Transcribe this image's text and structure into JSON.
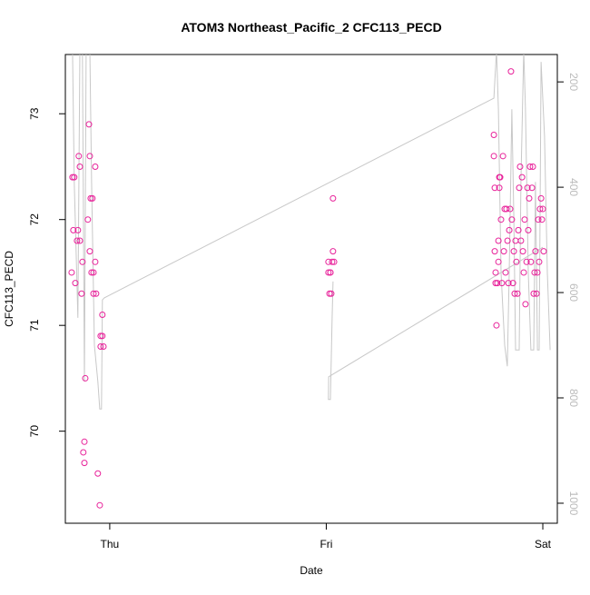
{
  "chart_data": {
    "type": "scatter",
    "title": "ATOM3 Northeast_Pacific_2 CFC113_PECD",
    "xlabel": "Date",
    "ylabel": "CFC113_PECD",
    "xlim": [
      -0.205,
      2.067
    ],
    "xticks": [
      {
        "value": 0,
        "label": "Thu"
      },
      {
        "value": 1,
        "label": "Fri"
      },
      {
        "value": 2,
        "label": "Sat"
      }
    ],
    "ylim": [
      69.13,
      73.56
    ],
    "yticks": [
      70,
      71,
      72,
      73
    ],
    "y2lim": [
      1038,
      148
    ],
    "y2ticks": [
      200,
      400,
      600,
      800,
      1000
    ],
    "series": [
      {
        "color": "#e8229a",
        "type": "scatter",
        "x": [
          -0.176,
          -0.172,
          -0.164,
          -0.168,
          -0.159,
          -0.151,
          -0.143,
          -0.147,
          -0.138,
          -0.138,
          -0.13,
          -0.126,
          -0.117,
          -0.122,
          -0.117,
          -0.113,
          -0.101,
          -0.096,
          -0.092,
          -0.088,
          -0.08,
          -0.092,
          -0.084,
          -0.075,
          -0.075,
          -0.067,
          -0.067,
          -0.063,
          -0.055,
          -0.046,
          -0.042,
          -0.034,
          -0.042,
          -0.029,
          -0.034,
          1.01,
          1.015,
          1.023,
          1.019,
          1.027,
          1.031,
          1.036,
          1.031,
          1.01,
          1.019,
          1.774,
          1.774,
          1.778,
          1.778,
          1.782,
          1.782,
          1.786,
          1.79,
          1.795,
          1.795,
          1.799,
          1.799,
          1.803,
          1.807,
          1.811,
          1.816,
          1.82,
          1.824,
          1.828,
          1.832,
          1.837,
          1.841,
          1.845,
          1.849,
          1.853,
          1.857,
          1.862,
          1.866,
          1.87,
          1.874,
          1.878,
          1.883,
          1.887,
          1.891,
          1.895,
          1.899,
          1.904,
          1.908,
          1.912,
          1.916,
          1.92,
          1.925,
          1.929,
          1.933,
          1.937,
          1.941,
          1.945,
          1.95,
          1.954,
          1.958,
          1.962,
          1.966,
          1.971,
          1.975,
          1.979,
          1.983,
          1.987,
          1.992,
          1.996,
          2.0,
          2.004
        ],
        "values": [
          71.5,
          72.4,
          72.4,
          71.9,
          71.4,
          71.8,
          72.6,
          71.9,
          72.5,
          71.8,
          71.3,
          71.6,
          69.9,
          69.8,
          69.7,
          70.5,
          72.0,
          72.9,
          72.6,
          72.2,
          72.2,
          71.7,
          71.5,
          71.5,
          71.3,
          72.5,
          71.6,
          71.3,
          69.6,
          69.3,
          70.9,
          70.9,
          70.8,
          70.8,
          71.1,
          71.5,
          71.3,
          71.3,
          71.5,
          71.6,
          71.7,
          71.6,
          72.2,
          71.6,
          71.5,
          72.8,
          72.6,
          72.3,
          71.7,
          71.5,
          71.4,
          71.0,
          71.4,
          71.8,
          71.6,
          72.3,
          72.4,
          72.4,
          72.0,
          71.4,
          72.6,
          71.7,
          72.1,
          71.5,
          72.1,
          71.8,
          71.4,
          71.9,
          72.1,
          73.4,
          72.0,
          71.4,
          71.7,
          71.3,
          71.8,
          71.6,
          71.3,
          71.9,
          72.3,
          72.5,
          71.8,
          72.4,
          71.7,
          71.5,
          72.0,
          71.2,
          71.6,
          72.3,
          71.9,
          72.2,
          72.5,
          71.6,
          72.3,
          72.5,
          71.3,
          71.5,
          71.7,
          71.3,
          71.5,
          72.0,
          71.6,
          72.1,
          72.2,
          72.0,
          72.1,
          71.7
        ]
      },
      {
        "color": "#c8c8c8",
        "type": "line",
        "axis": "y2",
        "x": [
          -0.172,
          -0.164,
          -0.147,
          -0.138,
          -0.126,
          -0.117,
          -0.109,
          -0.092,
          -0.084,
          -0.071,
          -0.055,
          -0.046,
          -0.038,
          -0.034,
          -0.025,
          1.774,
          1.786,
          1.795,
          1.807,
          1.824,
          1.836,
          1.845,
          1.857,
          1.866,
          1.874,
          1.891,
          1.899,
          1.912,
          1.92,
          1.933,
          1.945,
          1.958,
          1.966,
          1.975,
          1.983,
          1.992,
          2.008,
          2.021,
          2.034,
          null,
          1.031,
          1.027,
          1.019,
          1.01,
          1.011,
          2.0
        ],
        "values": [
          140,
          390,
          648,
          140,
          140,
          769,
          140,
          140,
          390,
          700,
          769,
          821,
          821,
          614,
          610,
          231,
          140,
          252,
          562,
          700,
          740,
          562,
          252,
          459,
          709,
          709,
          390,
          140,
          252,
          562,
          709,
          709,
          390,
          709,
          709,
          162,
          303,
          562,
          709,
          null,
          579,
          648,
          803,
          803,
          760,
          514
        ]
      }
    ]
  }
}
